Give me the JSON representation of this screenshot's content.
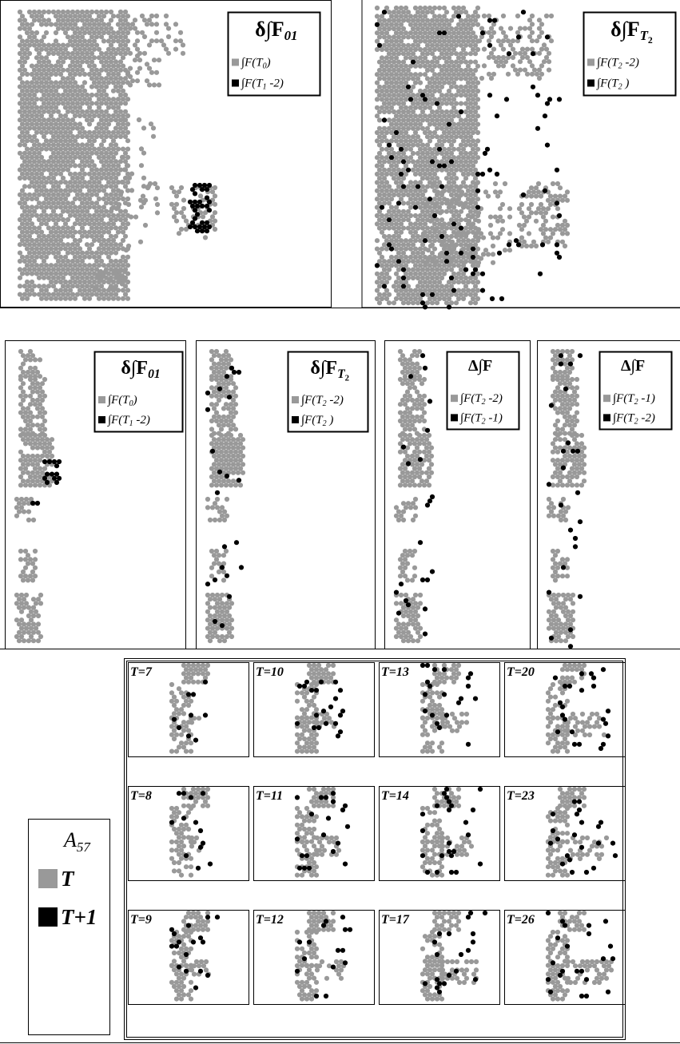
{
  "top_panels": [
    {
      "title": {
        "main": "δ∫F",
        "sub": "01"
      },
      "legend": [
        {
          "pre": "∫F(T",
          "sub": "0",
          "post": ")"
        },
        {
          "pre": "∫F(T",
          "sub": "1",
          "post": " -2)"
        }
      ]
    },
    {
      "title": {
        "main": "δ∫F",
        "sub": "T",
        "sub2": "2"
      },
      "legend": [
        {
          "pre": "∫F(T",
          "sub": "2",
          "post": " -2)"
        },
        {
          "pre": "∫F(T",
          "sub": "2",
          "post": " )"
        }
      ]
    }
  ],
  "middle_panels": [
    {
      "title": {
        "main": "δ∫F",
        "sub": "01"
      },
      "legend": [
        {
          "pre": "∫F(T",
          "sub": "0",
          "post": ")"
        },
        {
          "pre": "∫F(T",
          "sub": "1",
          "post": " -2)"
        }
      ]
    },
    {
      "title": {
        "main": "δ∫F",
        "sub": "T",
        "sub2": "2"
      },
      "legend": [
        {
          "pre": "∫F(T",
          "sub": "2",
          "post": " -2)"
        },
        {
          "pre": "∫F(T",
          "sub": "2",
          "post": " )"
        }
      ]
    },
    {
      "title": {
        "main": "Δ∫F"
      },
      "legend": [
        {
          "pre": "∫F(T",
          "sub": "2",
          "post": " -2)"
        },
        {
          "pre": "∫F(T",
          "sub": "2",
          "post": " -1)"
        }
      ]
    },
    {
      "title": {
        "main": "Δ∫F"
      },
      "legend": [
        {
          "pre": "∫F(T",
          "sub": "2",
          "post": " -1)"
        },
        {
          "pre": "∫F(T",
          "sub": "2",
          "post": " -2)"
        }
      ]
    }
  ],
  "grid_panels": [
    [
      "T=7",
      "T=10",
      "T=13",
      "T=20"
    ],
    [
      "T=8",
      "T=11",
      "T=14",
      "T=23"
    ],
    [
      "T=9",
      "T=12",
      "T=17",
      "T=26"
    ]
  ],
  "legend": {
    "title": {
      "main": "A",
      "sub": "57"
    },
    "items": [
      "T",
      "T+1"
    ]
  }
}
